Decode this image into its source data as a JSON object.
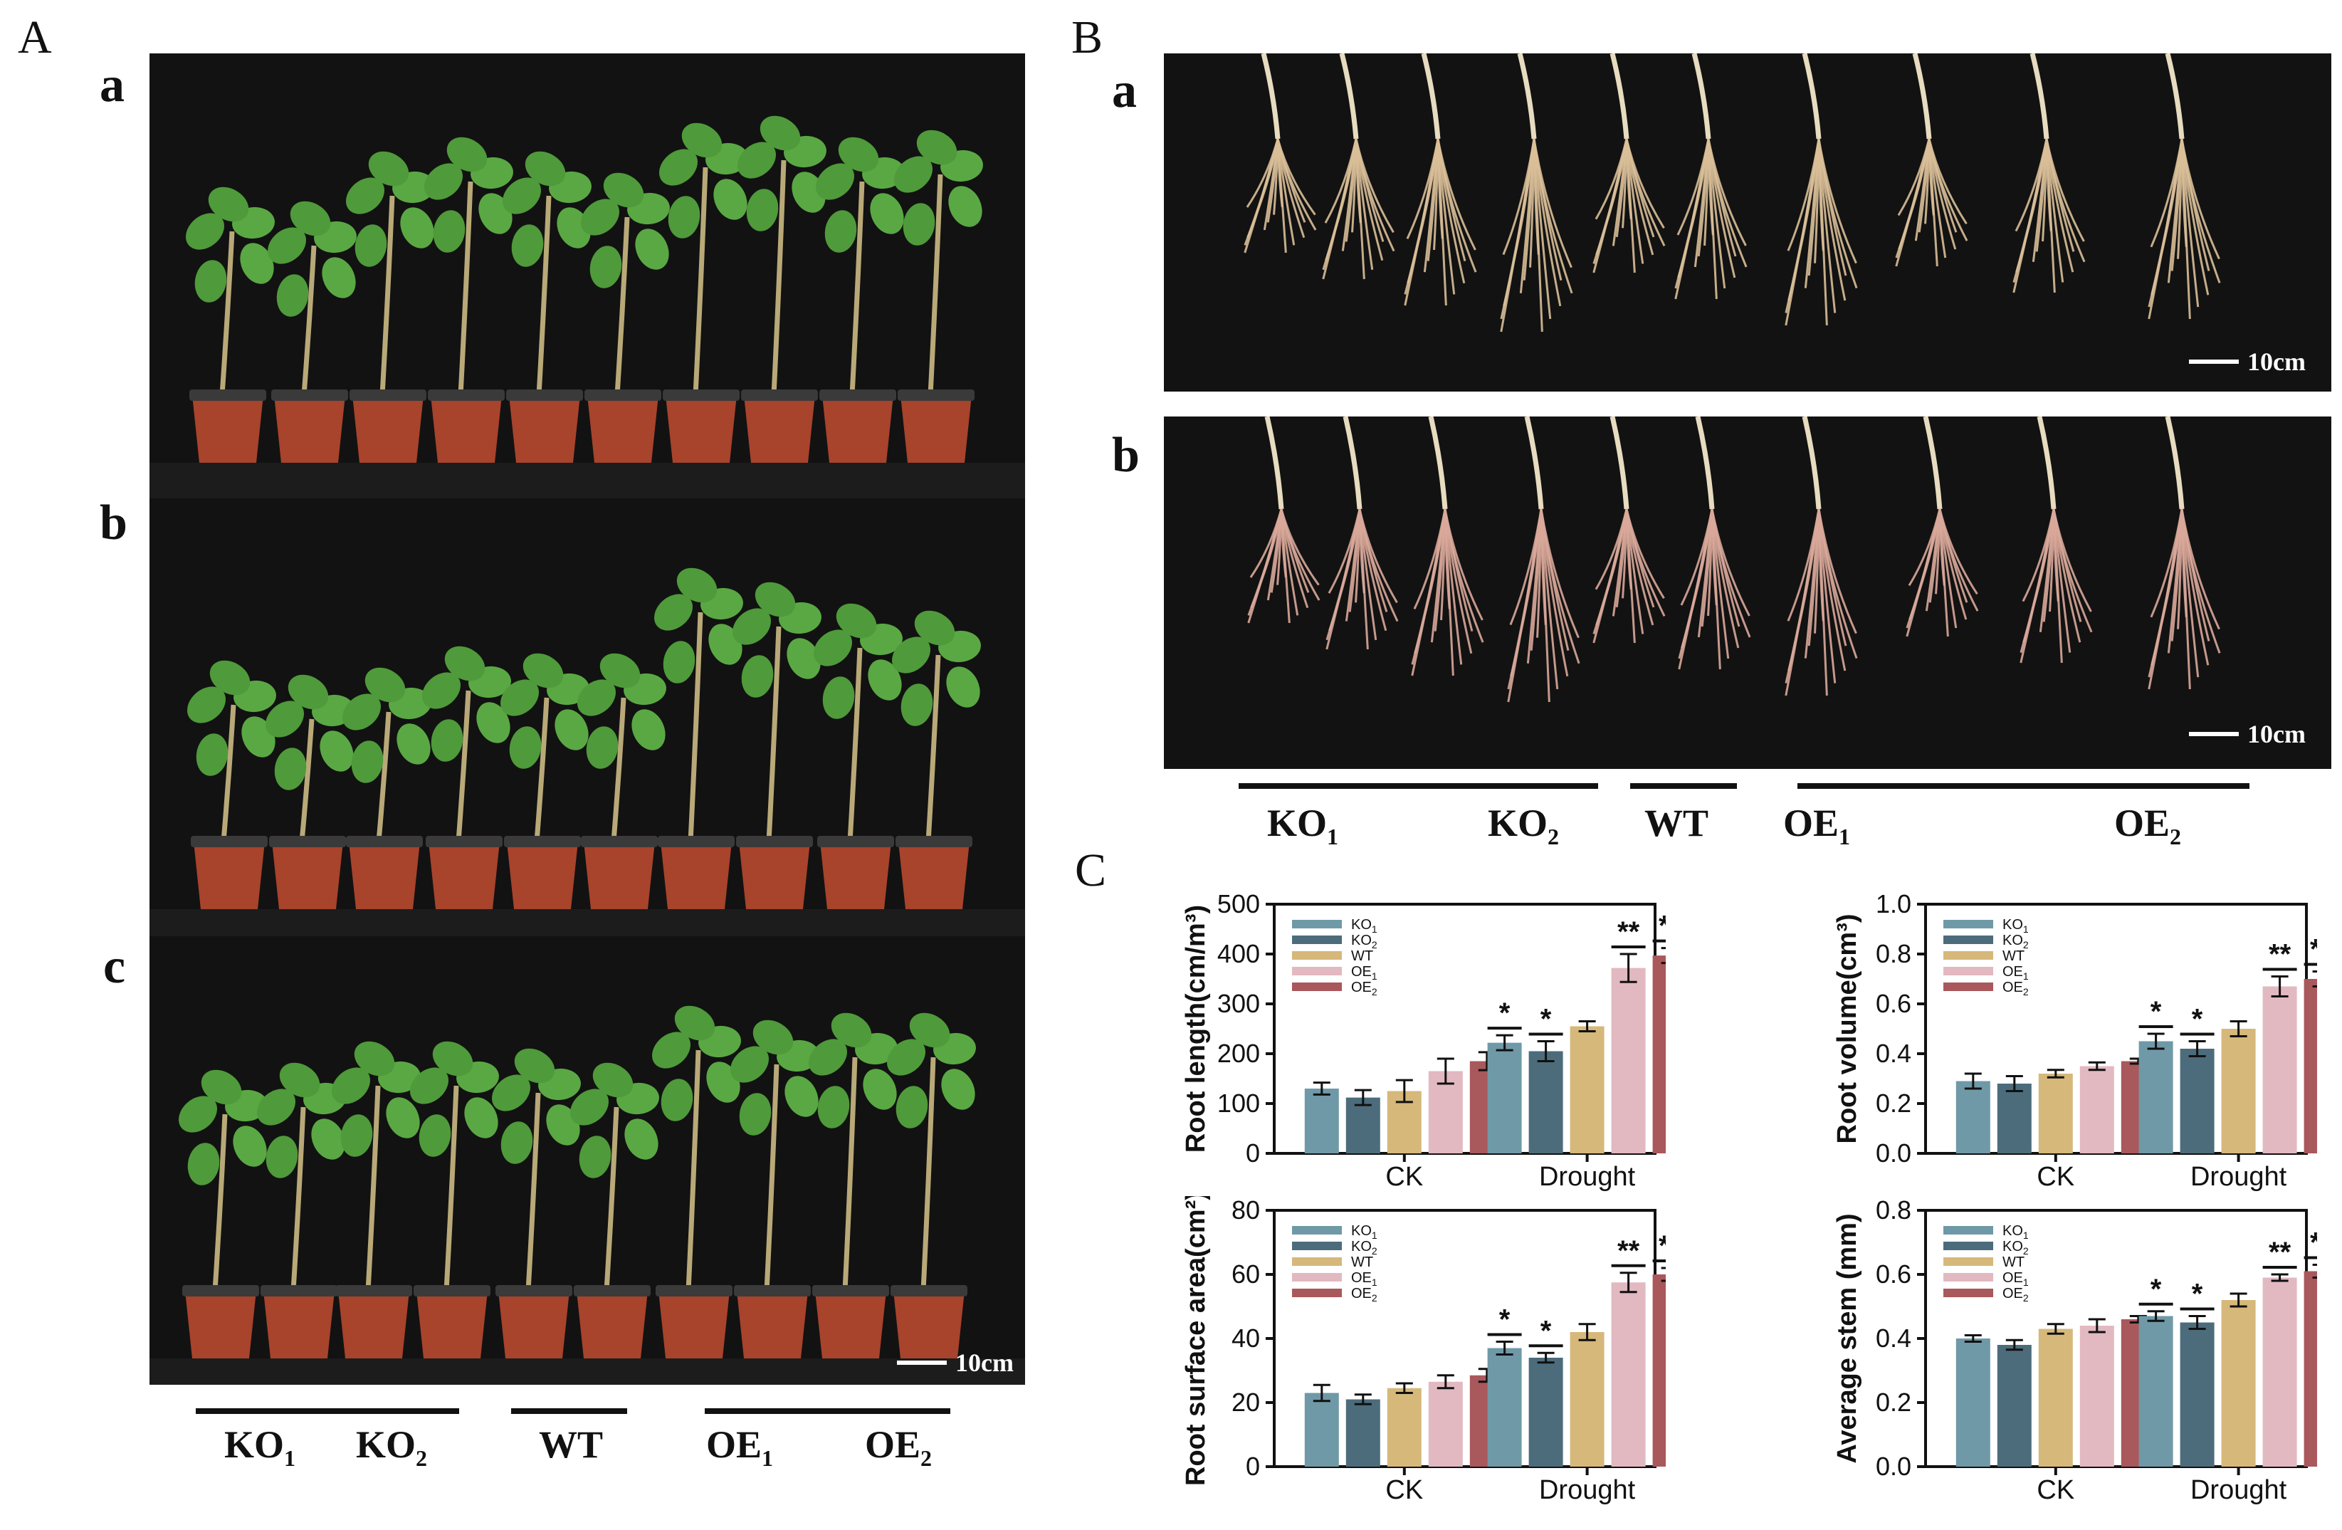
{
  "panels": {
    "A": "A",
    "B": "B",
    "C": "C",
    "sub": {
      "a": "a",
      "b": "b",
      "c": "c"
    }
  },
  "scale_bar": "10cm",
  "groups": [
    {
      "base": "KO",
      "sub": "1"
    },
    {
      "base": "KO",
      "sub": "2"
    },
    {
      "base": "WT",
      "sub": ""
    },
    {
      "base": "OE",
      "sub": "1"
    },
    {
      "base": "OE",
      "sub": "2"
    }
  ],
  "colors": {
    "KO1": "#6f99a7",
    "KO2": "#4c6c7b",
    "WT": "#d6b87a",
    "OE1": "#e2b9c1",
    "OE2": "#a9585b",
    "photo_bg": "#121212",
    "pot": "#a8432c",
    "leaf": "#4f9a3a",
    "root": "#d9bf98"
  },
  "chart_data": [
    {
      "type": "bar",
      "ylabel": "Root length(cm/m³)",
      "ylim": [
        0,
        500
      ],
      "yticks": [
        "0",
        "100",
        "200",
        "300",
        "400",
        "500"
      ],
      "categories": [
        "CK",
        "Drought"
      ],
      "series": [
        {
          "name": "KO1",
          "values": [
            130,
            222
          ],
          "errors": [
            12,
            15
          ],
          "sig": [
            "",
            "*"
          ]
        },
        {
          "name": "KO2",
          "values": [
            112,
            205
          ],
          "errors": [
            15,
            20
          ],
          "sig": [
            "",
            "*"
          ]
        },
        {
          "name": "WT",
          "values": [
            125,
            255
          ],
          "errors": [
            22,
            10
          ],
          "sig": [
            "",
            ""
          ]
        },
        {
          "name": "OE1",
          "values": [
            165,
            372
          ],
          "errors": [
            25,
            28
          ],
          "sig": [
            "",
            "**"
          ]
        },
        {
          "name": "OE2",
          "values": [
            185,
            397
          ],
          "errors": [
            18,
            15
          ],
          "sig": [
            "",
            "**"
          ]
        }
      ]
    },
    {
      "type": "bar",
      "ylabel": "Root volume(cm³)",
      "ylim": [
        0,
        1.0
      ],
      "yticks": [
        "0.0",
        "0.2",
        "0.4",
        "0.6",
        "0.8",
        "1.0"
      ],
      "categories": [
        "CK",
        "Drought"
      ],
      "series": [
        {
          "name": "KO1",
          "values": [
            0.29,
            0.45
          ],
          "errors": [
            0.03,
            0.03
          ],
          "sig": [
            "",
            "*"
          ]
        },
        {
          "name": "KO2",
          "values": [
            0.28,
            0.42
          ],
          "errors": [
            0.03,
            0.03
          ],
          "sig": [
            "",
            "*"
          ]
        },
        {
          "name": "WT",
          "values": [
            0.32,
            0.5
          ],
          "errors": [
            0.015,
            0.03
          ],
          "sig": [
            "",
            ""
          ]
        },
        {
          "name": "OE1",
          "values": [
            0.35,
            0.67
          ],
          "errors": [
            0.015,
            0.04
          ],
          "sig": [
            "",
            "**"
          ]
        },
        {
          "name": "OE2",
          "values": [
            0.37,
            0.7
          ],
          "errors": [
            0.01,
            0.03
          ],
          "sig": [
            "",
            "**"
          ]
        }
      ]
    },
    {
      "type": "bar",
      "ylabel": "Root surface area(cm²)",
      "ylim": [
        0,
        80
      ],
      "yticks": [
        "0",
        "20",
        "40",
        "60",
        "80"
      ],
      "categories": [
        "CK",
        "Drought"
      ],
      "series": [
        {
          "name": "KO1",
          "values": [
            23,
            37
          ],
          "errors": [
            2.5,
            2
          ],
          "sig": [
            "",
            "*"
          ]
        },
        {
          "name": "KO2",
          "values": [
            21,
            34
          ],
          "errors": [
            1.5,
            1.5
          ],
          "sig": [
            "",
            "*"
          ]
        },
        {
          "name": "WT",
          "values": [
            24.5,
            42
          ],
          "errors": [
            1.5,
            2.5
          ],
          "sig": [
            "",
            ""
          ]
        },
        {
          "name": "OE1",
          "values": [
            26.5,
            57.5
          ],
          "errors": [
            2,
            3
          ],
          "sig": [
            "",
            "**"
          ]
        },
        {
          "name": "OE2",
          "values": [
            28.5,
            60
          ],
          "errors": [
            2,
            2
          ],
          "sig": [
            "",
            "**"
          ]
        }
      ]
    },
    {
      "type": "bar",
      "ylabel": "Average stem (mm)",
      "ylim": [
        0,
        0.8
      ],
      "yticks": [
        "0.0",
        "0.2",
        "0.4",
        "0.6",
        "0.8"
      ],
      "categories": [
        "CK",
        "Drought"
      ],
      "series": [
        {
          "name": "KO1",
          "values": [
            0.4,
            0.47
          ],
          "errors": [
            0.01,
            0.015
          ],
          "sig": [
            "",
            "*"
          ]
        },
        {
          "name": "KO2",
          "values": [
            0.38,
            0.45
          ],
          "errors": [
            0.015,
            0.02
          ],
          "sig": [
            "",
            "*"
          ]
        },
        {
          "name": "WT",
          "values": [
            0.43,
            0.52
          ],
          "errors": [
            0.015,
            0.02
          ],
          "sig": [
            "",
            ""
          ]
        },
        {
          "name": "OE1",
          "values": [
            0.44,
            0.59
          ],
          "errors": [
            0.02,
            0.01
          ],
          "sig": [
            "",
            "**"
          ]
        },
        {
          "name": "OE2",
          "values": [
            0.46,
            0.61
          ],
          "errors": [
            0.01,
            0.02
          ],
          "sig": [
            "",
            "**"
          ]
        }
      ]
    }
  ]
}
